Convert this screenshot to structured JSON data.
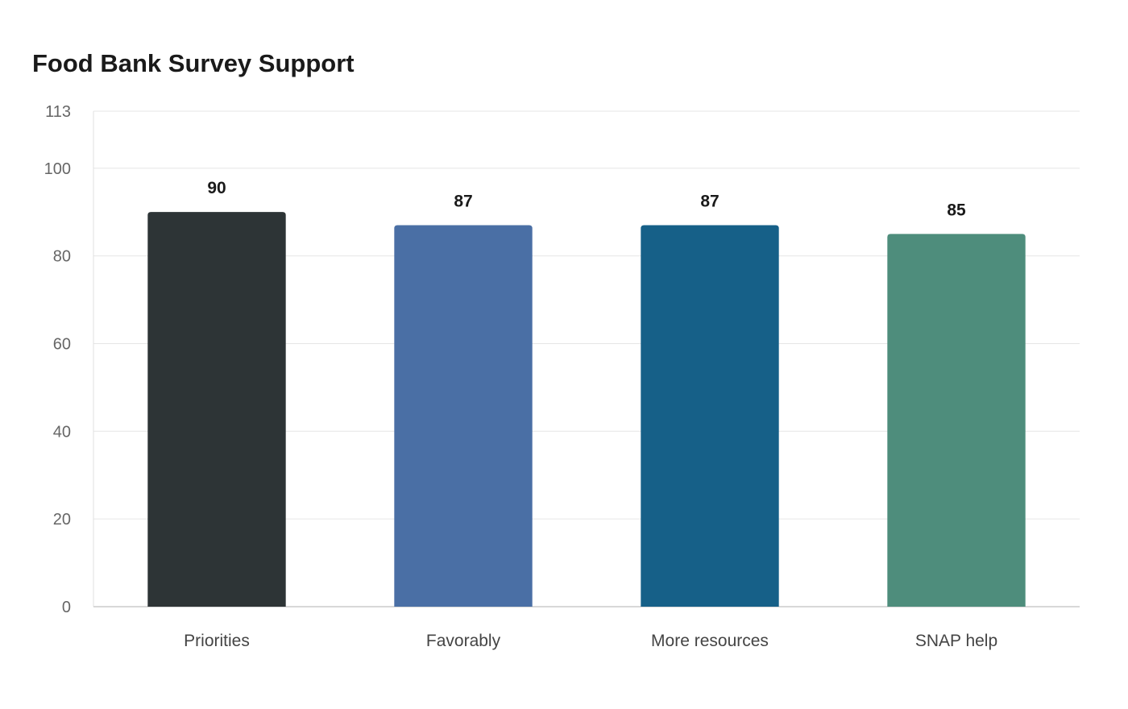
{
  "chart_data": {
    "type": "bar",
    "title": "Food Bank Survey Support",
    "categories": [
      "Priorities",
      "Favorably",
      "More resources",
      "SNAP help"
    ],
    "values": [
      90,
      87,
      87,
      85
    ],
    "colors": [
      "#2d3436",
      "#4a6fa5",
      "#166088",
      "#4e8d7c"
    ],
    "xlabel": "",
    "ylabel": "",
    "ylim": [
      0,
      113
    ],
    "yticks": [
      0,
      20,
      40,
      60,
      80,
      100,
      113
    ],
    "grid": true,
    "legend": "none",
    "data_labels": true
  }
}
